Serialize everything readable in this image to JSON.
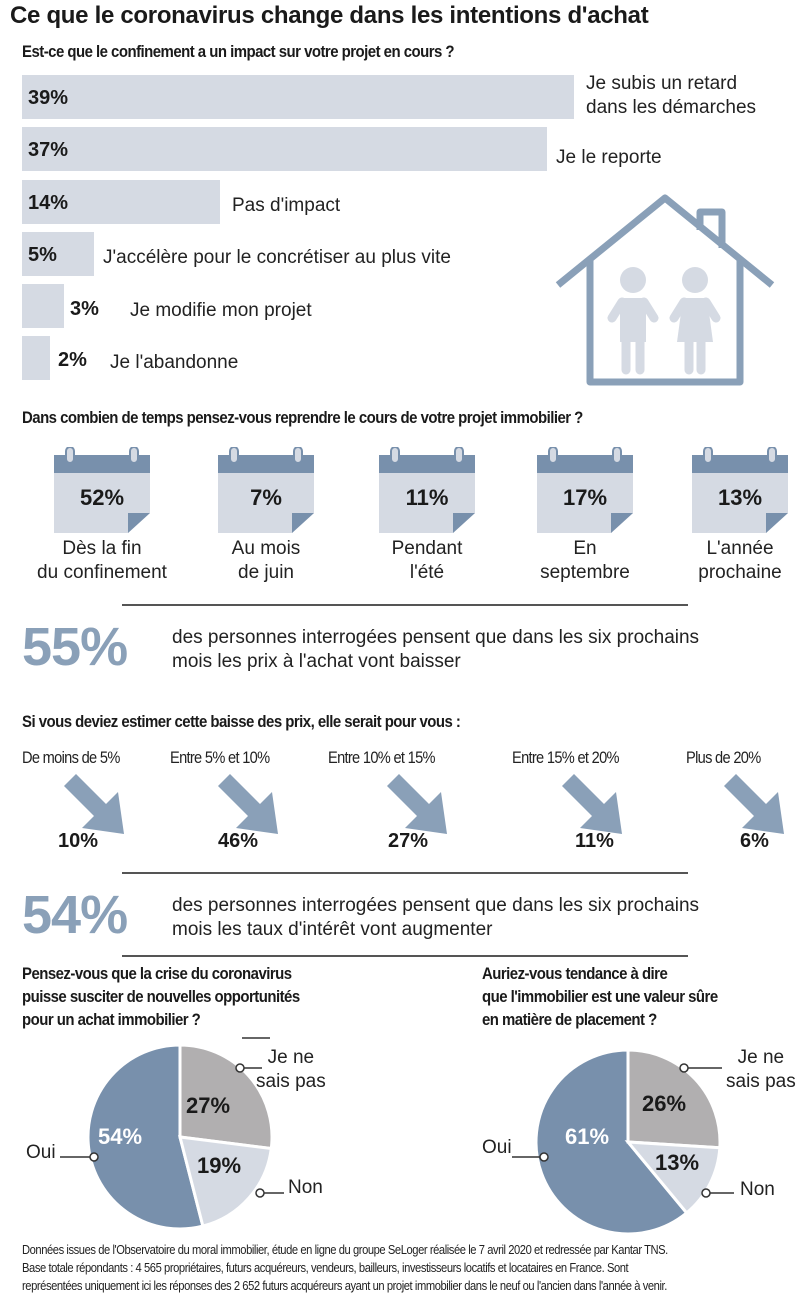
{
  "title": "Ce que le coronavirus change dans les intentions d'achat",
  "chart_data": [
    {
      "type": "bar",
      "title": "Est-ce que le confinement a un impact sur votre projet en cours ?",
      "categories": [
        "Je subis un retard dans les démarches",
        "Je le reporte",
        "Pas d'impact",
        "J'accélère pour le concrétiser au plus vite",
        "Je modifie mon projet",
        "Je l'abandonne"
      ],
      "values": [
        39,
        37,
        14,
        5,
        3,
        2
      ],
      "labels": [
        [
          "Je subis un retard",
          "dans les démarches"
        ],
        [
          "Je le reporte"
        ],
        [
          "Pas d'impact"
        ],
        [
          "J'accélère pour le concrétiser au plus vite"
        ],
        [
          "Je modifie mon projet"
        ],
        [
          "Je l'abandonne"
        ]
      ],
      "pct_text": [
        "39%",
        "37%",
        "14%",
        "5%",
        "3%",
        "2%"
      ],
      "color": "#d5dae3"
    },
    {
      "type": "table",
      "title": "Dans combien de temps pensez-vous reprendre le cours de votre projet immobilier ?",
      "categories": [
        "Dès la fin du confinement",
        "Au mois de juin",
        "Pendant l'été",
        "En septembre",
        "L'année prochaine"
      ],
      "values": [
        52,
        7,
        11,
        17,
        13
      ],
      "pct_text": [
        "52%",
        "7%",
        "11%",
        "17%",
        "13%"
      ],
      "labels": [
        [
          "Dès la fin",
          "du confinement"
        ],
        [
          "Au mois",
          "de juin"
        ],
        [
          "Pendant",
          "l'été"
        ],
        [
          "En",
          "septembre"
        ],
        [
          "L'année",
          "prochaine"
        ]
      ]
    },
    {
      "type": "table",
      "title": "Si vous deviez estimer cette baisse des prix, elle serait pour vous :",
      "categories": [
        "De moins de 5%",
        "Entre 5% et 10%",
        "Entre 10% et 15%",
        "Entre 15% et 20%",
        "Plus de 20%"
      ],
      "values": [
        10,
        46,
        27,
        11,
        6
      ],
      "pct_text": [
        "10%",
        "46%",
        "27%",
        "11%",
        "6%"
      ]
    },
    {
      "type": "pie",
      "title": [
        "Pensez-vous que la crise du coronavirus",
        "puisse susciter de nouvelles opportunités",
        "pour un achat immobilier ?"
      ],
      "categories": [
        "Oui",
        "Je ne sais pas",
        "Non"
      ],
      "values": [
        54,
        27,
        19
      ],
      "pct_text": [
        "54%",
        "27%",
        "19%"
      ],
      "labels": {
        "oui": "Oui",
        "nsp": [
          "Je ne",
          "sais pas"
        ],
        "non": "Non"
      },
      "colors": [
        "#7890ac",
        "#b1afb0",
        "#d5dae3"
      ]
    },
    {
      "type": "pie",
      "title": [
        "Auriez-vous tendance à dire",
        "que l'immobilier est une valeur sûre",
        "en matière de placement ?"
      ],
      "categories": [
        "Oui",
        "Je ne sais pas",
        "Non"
      ],
      "values": [
        61,
        26,
        13
      ],
      "pct_text": [
        "61%",
        "26%",
        "13%"
      ],
      "labels": {
        "oui": "Oui",
        "nsp": [
          "Je ne",
          "sais pas"
        ],
        "non": "Non"
      },
      "colors": [
        "#7890ac",
        "#b1afb0",
        "#d5dae3"
      ]
    }
  ],
  "stats": [
    {
      "value": "55%",
      "lines": [
        "des personnes interrogées pensent que dans les six prochains",
        "mois les prix à l'achat vont baisser"
      ]
    },
    {
      "value": "54%",
      "lines": [
        "des personnes interrogées pensent que dans les six prochains",
        "mois les taux d'intérêt vont augmenter"
      ]
    }
  ],
  "footnote": [
    "Données issues de l'Observatoire du moral immobilier, étude en ligne du groupe SeLoger réalisée le 7 avril 2020 et redressée par Kantar TNS.",
    "Base totale répondants : 4 565 propriétaires, futurs acquéreurs, vendeurs, bailleurs, investisseurs locatifs et locataires en France. Sont",
    "représentées uniquement ici les réponses des 2 652 futurs acquéreurs ayant un projet immobilier dans le neuf ou l'ancien dans l'année à venir."
  ],
  "colors": {
    "bar": "#d5dae3",
    "accent": "#7890ac",
    "grey": "#b1afb0",
    "arrow": "#8aa0b8"
  },
  "icons": {
    "house": "house-icon",
    "calendar": "calendar-icon",
    "arrow": "arrow-down-right-icon"
  }
}
